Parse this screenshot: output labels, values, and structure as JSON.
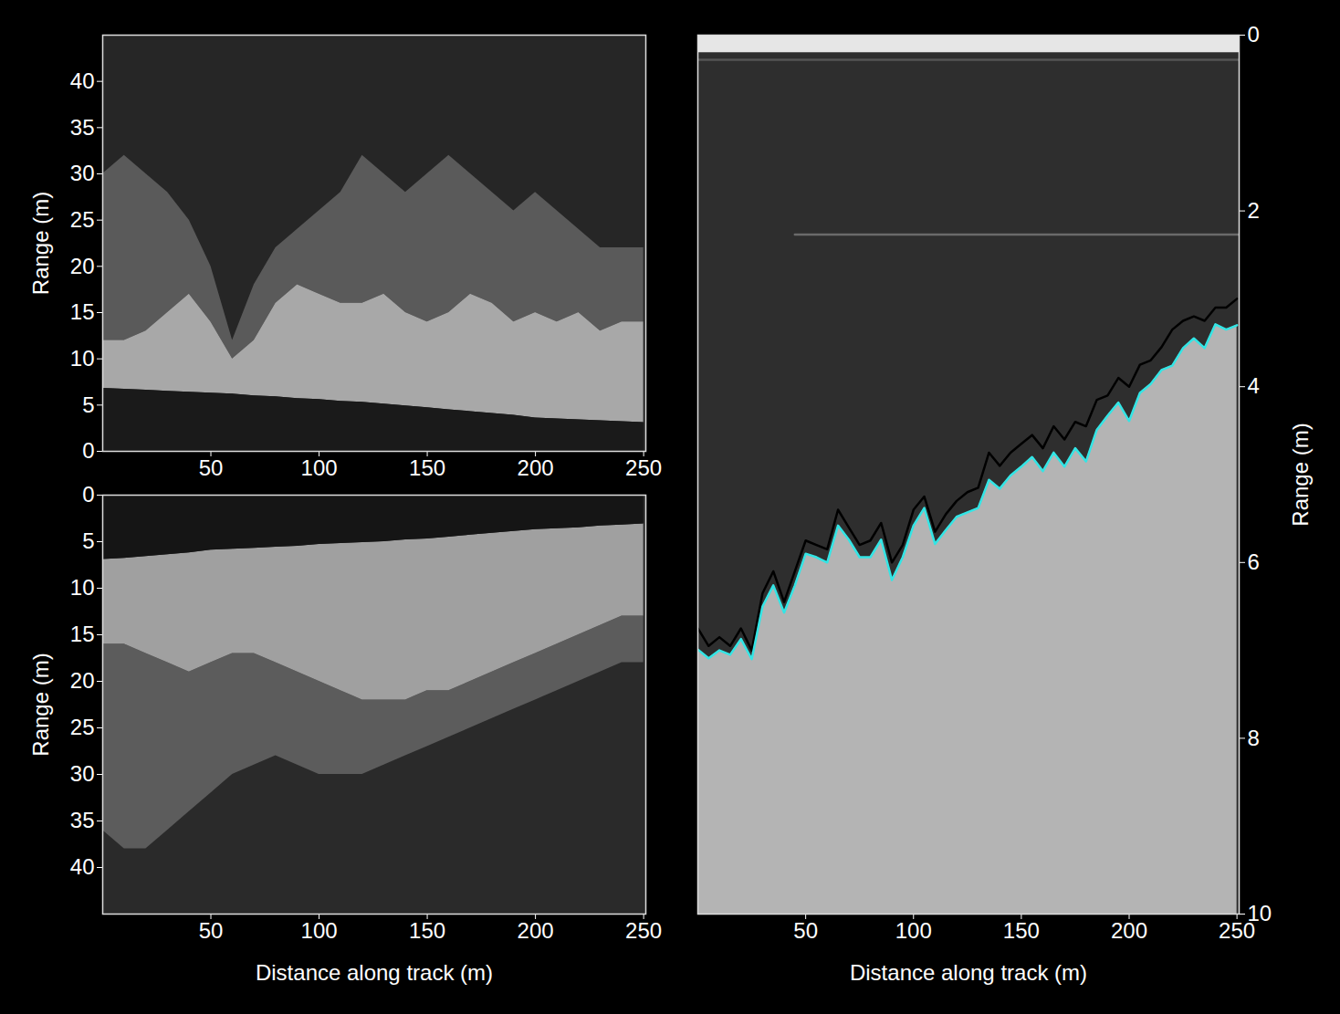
{
  "chart_data": [
    {
      "type": "area",
      "ylabel": "Range (m)",
      "xlim": [
        0,
        251
      ],
      "ylim": [
        0,
        45
      ],
      "xticks": [
        50,
        100,
        150,
        200,
        250
      ],
      "yticks": [
        0,
        5,
        10,
        15,
        20,
        25,
        30,
        35,
        40
      ],
      "grid": false,
      "x": [
        0,
        10,
        20,
        30,
        40,
        50,
        60,
        70,
        80,
        90,
        100,
        110,
        120,
        130,
        140,
        150,
        160,
        170,
        180,
        190,
        200,
        210,
        220,
        230,
        240,
        250
      ],
      "series": [
        {
          "color": "#5a5a5a",
          "values": [
            30,
            32,
            30,
            28,
            25,
            20,
            12,
            18,
            22,
            24,
            26,
            28,
            32,
            30,
            28,
            30,
            32,
            30,
            28,
            26,
            28,
            26,
            24,
            22,
            22,
            22
          ],
          "base": [
            12,
            12,
            13,
            15,
            17,
            14,
            10,
            12,
            16,
            18,
            17,
            16,
            16,
            17,
            15,
            14,
            15,
            17,
            16,
            14,
            15,
            14,
            15,
            13,
            14,
            14
          ]
        },
        {
          "color": "#a8a8a8",
          "values": [
            12,
            12,
            13,
            15,
            17,
            14,
            10,
            12,
            16,
            18,
            17,
            16,
            16,
            17,
            15,
            14,
            15,
            17,
            16,
            14,
            15,
            14,
            15,
            13,
            14,
            14
          ],
          "base": [
            6.8,
            6.7,
            6.6,
            6.5,
            6.4,
            6.3,
            6.2,
            6.0,
            5.9,
            5.7,
            5.6,
            5.4,
            5.3,
            5.1,
            4.9,
            4.7,
            4.5,
            4.3,
            4.1,
            3.9,
            3.6,
            3.5,
            3.4,
            3.3,
            3.2,
            3.1
          ]
        },
        {
          "color": "#1a1a1a",
          "values": [
            6.8,
            6.7,
            6.6,
            6.5,
            6.4,
            6.3,
            6.2,
            6.0,
            5.9,
            5.7,
            5.6,
            5.4,
            5.3,
            5.1,
            4.9,
            4.7,
            4.5,
            4.3,
            4.1,
            3.9,
            3.6,
            3.5,
            3.4,
            3.3,
            3.2,
            3.1
          ],
          "base": 0
        }
      ]
    },
    {
      "type": "area",
      "xlabel": "Distance along track (m)",
      "ylabel": "Range (m)",
      "xlim": [
        0,
        251
      ],
      "ylim": [
        45,
        0
      ],
      "xticks": [
        50,
        100,
        150,
        200,
        250
      ],
      "yticks": [
        0,
        5,
        10,
        15,
        20,
        25,
        30,
        35,
        40
      ],
      "grid": false,
      "x": [
        0,
        10,
        20,
        30,
        40,
        50,
        60,
        70,
        80,
        90,
        100,
        110,
        120,
        130,
        140,
        150,
        160,
        170,
        180,
        190,
        200,
        210,
        220,
        230,
        240,
        250
      ],
      "series": [
        {
          "color": "#5c5c5c",
          "values": [
            36,
            38,
            38,
            36,
            34,
            32,
            30,
            29,
            28,
            29,
            30,
            30,
            30,
            29,
            28,
            27,
            26,
            25,
            24,
            23,
            22,
            21,
            20,
            19,
            18,
            18
          ],
          "base": [
            16,
            16,
            17,
            18,
            19,
            18,
            17,
            17,
            18,
            19,
            20,
            21,
            22,
            22,
            22,
            21,
            21,
            20,
            19,
            18,
            17,
            16,
            15,
            14,
            13,
            13
          ]
        },
        {
          "color": "#a0a0a0",
          "values": [
            16,
            16,
            17,
            18,
            19,
            18,
            17,
            17,
            18,
            19,
            20,
            21,
            22,
            22,
            22,
            21,
            21,
            20,
            19,
            18,
            17,
            16,
            15,
            14,
            13,
            13
          ],
          "base": [
            6.9,
            6.8,
            6.6,
            6.4,
            6.2,
            5.9,
            5.8,
            5.7,
            5.6,
            5.5,
            5.3,
            5.2,
            5.1,
            5.0,
            4.8,
            4.7,
            4.5,
            4.3,
            4.1,
            3.9,
            3.7,
            3.6,
            3.5,
            3.3,
            3.2,
            3.1
          ]
        },
        {
          "color": "#151515",
          "values": [
            6.9,
            6.8,
            6.6,
            6.4,
            6.2,
            5.9,
            5.8,
            5.7,
            5.6,
            5.5,
            5.3,
            5.2,
            5.1,
            5.0,
            4.8,
            4.7,
            4.5,
            4.3,
            4.1,
            3.9,
            3.7,
            3.6,
            3.5,
            3.3,
            3.2,
            3.1
          ],
          "base": 0
        }
      ]
    },
    {
      "type": "line",
      "xlabel": "Distance along track (m)",
      "ylabel": "Range (m)",
      "xlim": [
        0,
        251
      ],
      "ylim": [
        10,
        0
      ],
      "xticks": [
        50,
        100,
        150,
        200,
        250
      ],
      "yticks": [
        0,
        2,
        4,
        6,
        8,
        10
      ],
      "grid": false,
      "x": [
        0,
        5,
        10,
        15,
        20,
        25,
        30,
        35,
        40,
        45,
        50,
        55,
        60,
        65,
        70,
        75,
        80,
        85,
        90,
        95,
        100,
        105,
        110,
        115,
        120,
        125,
        130,
        135,
        140,
        145,
        150,
        155,
        160,
        165,
        170,
        175,
        180,
        185,
        190,
        195,
        200,
        205,
        210,
        215,
        220,
        225,
        230,
        235,
        240,
        245,
        250
      ],
      "series": [
        {
          "type": "area",
          "color": "#b4b4b4",
          "values": [
            6.99,
            7.09,
            7.0,
            7.05,
            6.87,
            7.1,
            6.5,
            6.26,
            6.57,
            6.26,
            5.9,
            5.94,
            6.0,
            5.58,
            5.74,
            5.94,
            5.94,
            5.74,
            6.2,
            5.94,
            5.58,
            5.38,
            5.79,
            5.63,
            5.48,
            5.43,
            5.38,
            5.06,
            5.16,
            5.01,
            4.91,
            4.8,
            4.96,
            4.75,
            4.91,
            4.7,
            4.85,
            4.49,
            4.33,
            4.18,
            4.39,
            4.07,
            3.97,
            3.81,
            3.76,
            3.56,
            3.45,
            3.56,
            3.29,
            3.35,
            3.3
          ],
          "base": 10
        },
        {
          "type": "area",
          "color": "#e6e6e6",
          "x": [
            0,
            251
          ],
          "values": [
            0.2,
            0.2
          ],
          "base": 0
        },
        {
          "type": "line",
          "color": "#555555",
          "x": [
            0,
            251
          ],
          "values": [
            0.28,
            0.28
          ]
        },
        {
          "type": "line",
          "color": "#6a6a6a",
          "x": [
            45,
            251
          ],
          "values": [
            2.27,
            2.27
          ]
        },
        {
          "type": "line",
          "color": "#000000",
          "values": [
            6.75,
            6.95,
            6.85,
            6.95,
            6.75,
            7.0,
            6.35,
            6.1,
            6.45,
            6.1,
            5.75,
            5.8,
            5.85,
            5.4,
            5.6,
            5.8,
            5.75,
            5.55,
            6.0,
            5.8,
            5.4,
            5.25,
            5.65,
            5.45,
            5.3,
            5.2,
            5.15,
            4.75,
            4.9,
            4.75,
            4.65,
            4.55,
            4.7,
            4.45,
            4.6,
            4.4,
            4.45,
            4.15,
            4.1,
            3.9,
            4.0,
            3.75,
            3.7,
            3.55,
            3.35,
            3.25,
            3.2,
            3.25,
            3.1,
            3.1,
            3.0
          ]
        },
        {
          "type": "line",
          "color": "#33e5e5",
          "values": [
            6.99,
            7.09,
            7.0,
            7.05,
            6.87,
            7.1,
            6.5,
            6.26,
            6.57,
            6.26,
            5.9,
            5.94,
            6.0,
            5.58,
            5.74,
            5.94,
            5.94,
            5.74,
            6.2,
            5.94,
            5.58,
            5.38,
            5.79,
            5.63,
            5.48,
            5.43,
            5.38,
            5.06,
            5.16,
            5.01,
            4.91,
            4.8,
            4.96,
            4.75,
            4.91,
            4.7,
            4.85,
            4.49,
            4.33,
            4.18,
            4.39,
            4.07,
            3.97,
            3.81,
            3.76,
            3.56,
            3.45,
            3.56,
            3.29,
            3.35,
            3.3
          ]
        }
      ]
    }
  ]
}
